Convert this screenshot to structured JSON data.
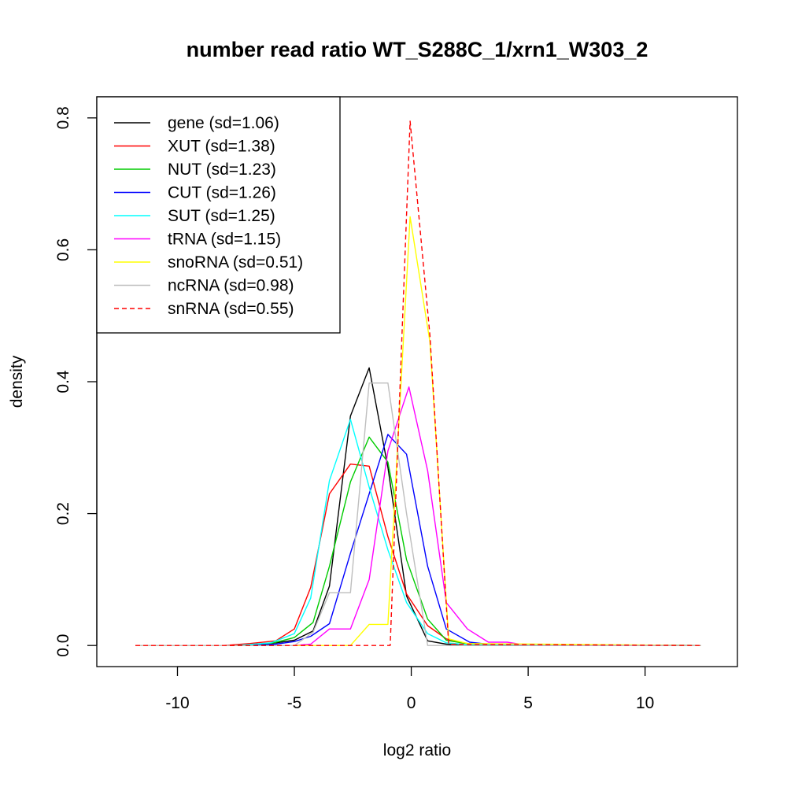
{
  "chart_data": {
    "type": "line",
    "title": "number read ratio WT_S288C_1/xrn1_W303_2",
    "xlabel": "log2 ratio",
    "ylabel": "density",
    "xlim": [
      -13.45,
      13.95
    ],
    "ylim": [
      -0.032,
      0.832
    ],
    "xticks": [
      -10,
      -5,
      0,
      5,
      10
    ],
    "xtick_labels": [
      "-10",
      "-5",
      "0",
      "5",
      "10"
    ],
    "yticks": [
      0.0,
      0.2,
      0.4,
      0.6,
      0.8
    ],
    "ytick_labels": [
      "0.0",
      "0.2",
      "0.4",
      "0.6",
      "0.8"
    ],
    "grid": false,
    "legend_position": "top-left",
    "series": [
      {
        "name": "gene (sd=1.06)",
        "color": "#000000",
        "dash": "solid",
        "points": [
          [
            -11.8,
            0
          ],
          [
            -7.8,
            0
          ],
          [
            -6.2,
            0.002
          ],
          [
            -5.0,
            0.008
          ],
          [
            -4.2,
            0.022
          ],
          [
            -3.5,
            0.09
          ],
          [
            -2.6,
            0.348
          ],
          [
            -1.8,
            0.421
          ],
          [
            -1.0,
            0.27
          ],
          [
            -0.2,
            0.075
          ],
          [
            0.7,
            0.007
          ],
          [
            1.5,
            0.002
          ],
          [
            2.5,
            0
          ],
          [
            12.4,
            0
          ]
        ]
      },
      {
        "name": "XUT (sd=1.38)",
        "color": "#ff0000",
        "dash": "solid",
        "points": [
          [
            -11.8,
            0
          ],
          [
            -8.0,
            0
          ],
          [
            -6.9,
            0.003
          ],
          [
            -5.8,
            0.007
          ],
          [
            -5.0,
            0.025
          ],
          [
            -4.3,
            0.088
          ],
          [
            -3.5,
            0.23
          ],
          [
            -2.6,
            0.275
          ],
          [
            -1.8,
            0.272
          ],
          [
            -1.0,
            0.165
          ],
          [
            -0.2,
            0.078
          ],
          [
            0.7,
            0.03
          ],
          [
            1.5,
            0.01
          ],
          [
            2.4,
            0.003
          ],
          [
            3.5,
            0.001
          ],
          [
            12.4,
            0
          ]
        ]
      },
      {
        "name": "NUT (sd=1.23)",
        "color": "#00cc00",
        "dash": "solid",
        "points": [
          [
            -11.8,
            0
          ],
          [
            -7.5,
            0
          ],
          [
            -6.0,
            0.003
          ],
          [
            -5.0,
            0.012
          ],
          [
            -4.2,
            0.035
          ],
          [
            -3.5,
            0.12
          ],
          [
            -2.6,
            0.248
          ],
          [
            -1.8,
            0.316
          ],
          [
            -1.0,
            0.278
          ],
          [
            -0.2,
            0.13
          ],
          [
            0.7,
            0.04
          ],
          [
            1.5,
            0.008
          ],
          [
            2.5,
            0.002
          ],
          [
            12.4,
            0
          ]
        ]
      },
      {
        "name": "CUT (sd=1.26)",
        "color": "#0000ff",
        "dash": "solid",
        "points": [
          [
            -11.8,
            0
          ],
          [
            -7.0,
            0
          ],
          [
            -5.8,
            0.002
          ],
          [
            -5.0,
            0.006
          ],
          [
            -4.3,
            0.014
          ],
          [
            -3.5,
            0.033
          ],
          [
            -2.6,
            0.14
          ],
          [
            -1.8,
            0.23
          ],
          [
            -1.0,
            0.32
          ],
          [
            -0.2,
            0.29
          ],
          [
            0.7,
            0.12
          ],
          [
            1.5,
            0.025
          ],
          [
            2.5,
            0.005
          ],
          [
            3.5,
            0.001
          ],
          [
            12.4,
            0
          ]
        ]
      },
      {
        "name": "SUT (sd=1.25)",
        "color": "#00ffff",
        "dash": "solid",
        "points": [
          [
            -11.8,
            0
          ],
          [
            -7.5,
            0
          ],
          [
            -6.0,
            0.004
          ],
          [
            -5.0,
            0.018
          ],
          [
            -4.3,
            0.072
          ],
          [
            -3.5,
            0.25
          ],
          [
            -2.6,
            0.343
          ],
          [
            -1.8,
            0.24
          ],
          [
            -1.0,
            0.145
          ],
          [
            -0.2,
            0.065
          ],
          [
            0.7,
            0.018
          ],
          [
            1.5,
            0.004
          ],
          [
            2.5,
            0.001
          ],
          [
            12.4,
            0
          ]
        ]
      },
      {
        "name": "tRNA (sd=1.15)",
        "color": "#ff00ff",
        "dash": "solid",
        "points": [
          [
            -11.8,
            0
          ],
          [
            -5.0,
            0
          ],
          [
            -4.3,
            0.002
          ],
          [
            -3.5,
            0.025
          ],
          [
            -2.6,
            0.025
          ],
          [
            -1.8,
            0.1
          ],
          [
            -1.0,
            0.295
          ],
          [
            -0.1,
            0.392
          ],
          [
            0.7,
            0.265
          ],
          [
            1.5,
            0.065
          ],
          [
            2.4,
            0.025
          ],
          [
            3.3,
            0.005
          ],
          [
            4.1,
            0.005
          ],
          [
            5.0,
            0
          ],
          [
            12.4,
            0
          ]
        ]
      },
      {
        "name": "snoRNA (sd=0.51)",
        "color": "#ffff00",
        "dash": "solid",
        "points": [
          [
            -11.8,
            0
          ],
          [
            -2.6,
            0
          ],
          [
            -1.8,
            0.032
          ],
          [
            -1.0,
            0.032
          ],
          [
            -0.05,
            0.65
          ],
          [
            0.8,
            0.46
          ],
          [
            1.6,
            0.01
          ],
          [
            2.4,
            0.003
          ],
          [
            12.4,
            0
          ]
        ]
      },
      {
        "name": "ncRNA (sd=0.98)",
        "color": "#bebebe",
        "dash": "solid",
        "points": [
          [
            -11.8,
            0
          ],
          [
            -5.0,
            0
          ],
          [
            -4.2,
            0.02
          ],
          [
            -3.5,
            0.08
          ],
          [
            -2.6,
            0.08
          ],
          [
            -1.8,
            0.398
          ],
          [
            -1.0,
            0.398
          ],
          [
            -0.2,
            0.2
          ],
          [
            0.7,
            0
          ],
          [
            12.4,
            0
          ]
        ]
      },
      {
        "name": "snRNA (sd=0.55)",
        "color": "#ff0000",
        "dash": "dashed",
        "points": [
          [
            -11.8,
            0
          ],
          [
            -0.9,
            0
          ],
          [
            -0.05,
            0.795
          ],
          [
            0.8,
            0.47
          ],
          [
            1.6,
            0.002
          ],
          [
            12.4,
            0
          ]
        ]
      }
    ]
  }
}
